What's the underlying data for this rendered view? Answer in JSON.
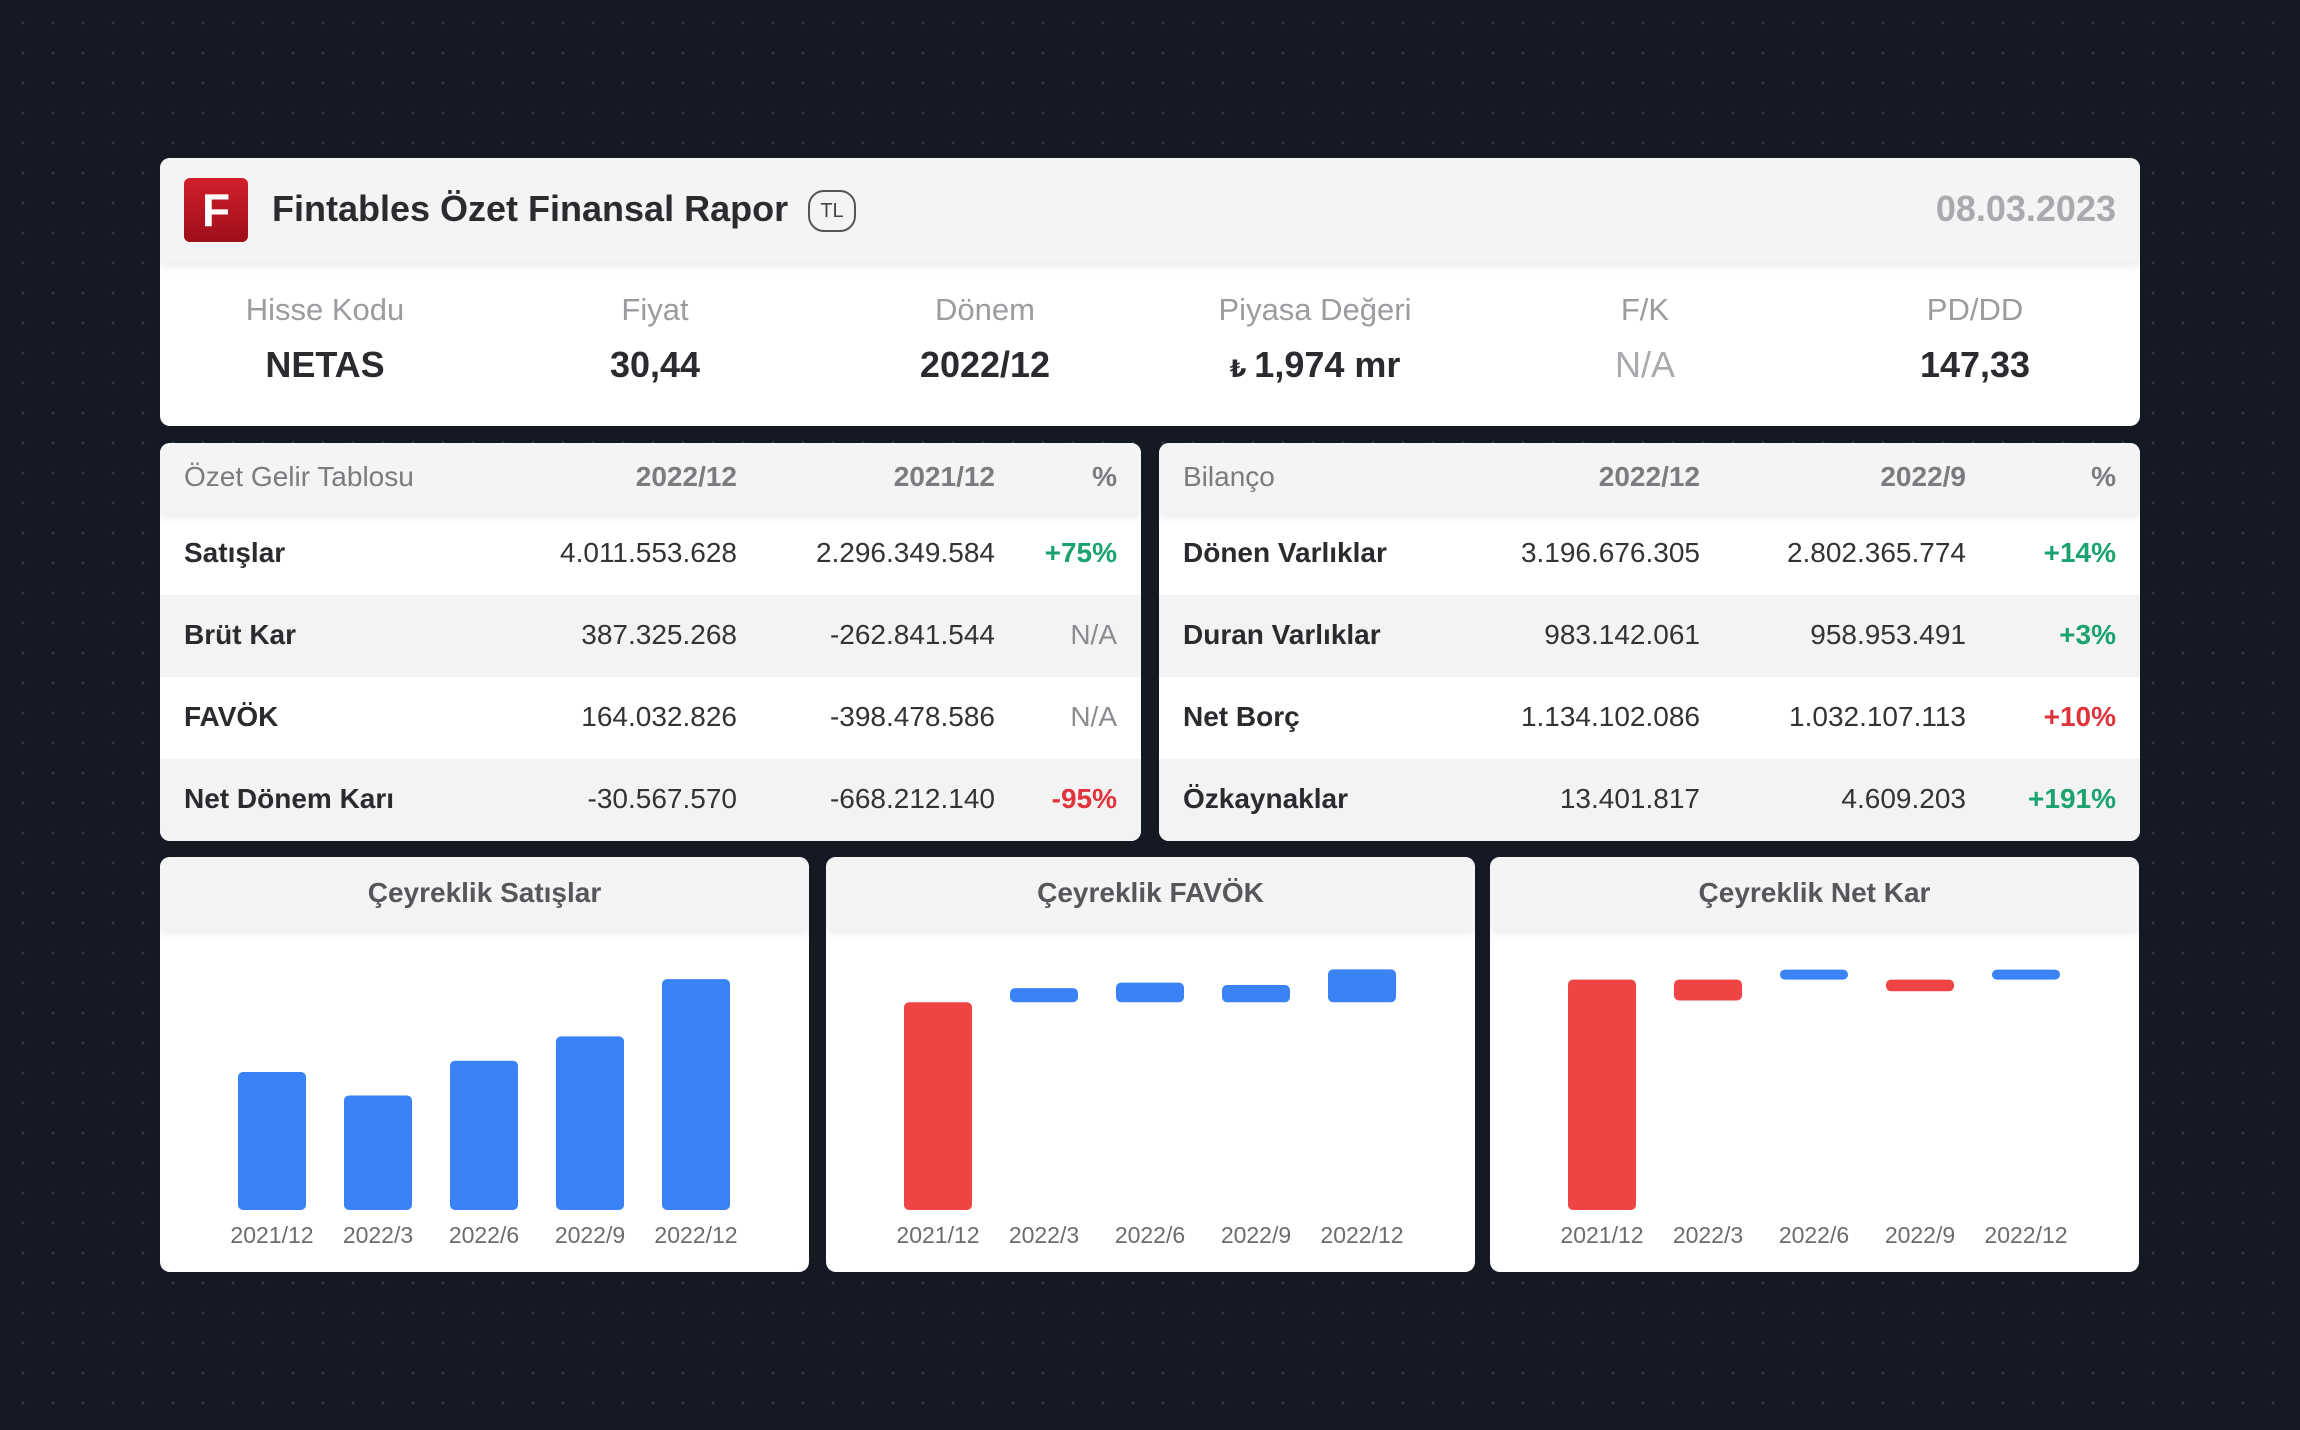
{
  "header": {
    "logo_letter": "F",
    "title": "Fintables Özet Finansal Rapor",
    "currency": "TL",
    "date": "08.03.2023"
  },
  "metrics": [
    {
      "label": "Hisse Kodu",
      "value": "NETAS"
    },
    {
      "label": "Fiyat",
      "value": "30,44"
    },
    {
      "label": "Dönem",
      "value": "2022/12"
    },
    {
      "label": "Piyasa Değeri",
      "value": "1,974 mr",
      "prefix": "₺"
    },
    {
      "label": "F/K",
      "value": "N/A"
    },
    {
      "label": "PD/DD",
      "value": "147,33"
    }
  ],
  "income": {
    "headers": [
      "Özet Gelir Tablosu",
      "2022/12",
      "2021/12",
      "%"
    ],
    "rows": [
      {
        "name": "Satışlar",
        "v1": "4.011.553.628",
        "v2": "2.296.349.584",
        "pct": "+75%"
      },
      {
        "name": "Brüt Kar",
        "v1": "387.325.268",
        "v2": "-262.841.544",
        "pct": "N/A"
      },
      {
        "name": "FAVÖK",
        "v1": "164.032.826",
        "v2": "-398.478.586",
        "pct": "N/A"
      },
      {
        "name": "Net Dönem Karı",
        "v1": "-30.567.570",
        "v2": "-668.212.140",
        "pct": "-95%"
      }
    ]
  },
  "balance": {
    "headers": [
      "Bilanço",
      "2022/12",
      "2022/9",
      "%"
    ],
    "rows": [
      {
        "name": "Dönen Varlıklar",
        "v1": "3.196.676.305",
        "v2": "2.802.365.774",
        "pct": "+14%"
      },
      {
        "name": "Duran Varlıklar",
        "v1": "983.142.061",
        "v2": "958.953.491",
        "pct": "+3%"
      },
      {
        "name": "Net Borç",
        "v1": "1.134.102.086",
        "v2": "1.032.107.113",
        "pct": "+10%"
      },
      {
        "name": "Özkaynaklar",
        "v1": "13.401.817",
        "v2": "4.609.203",
        "pct": "+191%"
      }
    ]
  },
  "colors": {
    "positive": "#1aa36f",
    "negative": "#e0343c",
    "bar_blue": "#3b82f6",
    "bar_red": "#ef4444"
  },
  "chart_data": [
    {
      "type": "bar",
      "title": "Çeyreklik Satışlar",
      "categories": [
        "2021/12",
        "2022/3",
        "2022/6",
        "2022/9",
        "2022/12"
      ],
      "values": [
        795,
        660,
        860,
        1000,
        1330
      ],
      "ylim": [
        0,
        1400
      ],
      "xlabel": "",
      "ylabel": ""
    },
    {
      "type": "bar",
      "title": "Çeyreklik FAVÖK",
      "categories": [
        "2021/12",
        "2022/3",
        "2022/6",
        "2022/9",
        "2022/12"
      ],
      "values": [
        -265,
        18,
        25,
        22,
        42
      ],
      "ylim": [
        -265,
        45
      ],
      "xlabel": "",
      "ylabel": ""
    },
    {
      "type": "bar",
      "title": "Çeyreklik Net Kar",
      "categories": [
        "2021/12",
        "2022/3",
        "2022/6",
        "2022/9",
        "2022/12"
      ],
      "values": [
        -550,
        -50,
        22,
        -28,
        14
      ],
      "ylim": [
        -550,
        30
      ],
      "xlabel": "",
      "ylabel": ""
    }
  ]
}
